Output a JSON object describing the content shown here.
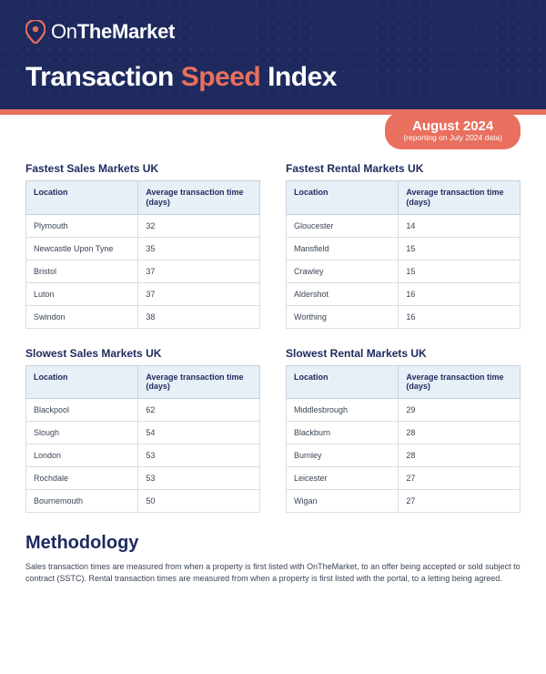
{
  "brand": {
    "name_prefix": "On",
    "name_rest": "TheMarket"
  },
  "title": {
    "part1": "Transaction ",
    "accent": "Speed",
    "part2": " Index"
  },
  "badge": {
    "main": "August 2024",
    "sub": "(reporting on July 2024 data)"
  },
  "colors": {
    "header_bg": "#1e2a5e",
    "accent": "#e96f5e",
    "th_bg": "#e8f0f7",
    "border": "#c5d2de"
  },
  "tables": [
    {
      "title": "Fastest Sales Markets UK",
      "columns": [
        "Location",
        "Average transaction time (days)"
      ],
      "rows": [
        [
          "Plymouth",
          "32"
        ],
        [
          "Newcastle Upon Tyne",
          "35"
        ],
        [
          "Bristol",
          "37"
        ],
        [
          "Luton",
          "37"
        ],
        [
          "Swindon",
          "38"
        ]
      ]
    },
    {
      "title": "Fastest Rental Markets UK",
      "columns": [
        "Location",
        "Average transaction time (days)"
      ],
      "rows": [
        [
          "Gloucester",
          "14"
        ],
        [
          "Mansfield",
          "15"
        ],
        [
          "Crawley",
          "15"
        ],
        [
          "Aldershot",
          "16"
        ],
        [
          "Worthing",
          "16"
        ]
      ]
    },
    {
      "title": "Slowest Sales Markets UK",
      "columns": [
        "Location",
        "Average transaction time (days)"
      ],
      "rows": [
        [
          "Blackpool",
          "62"
        ],
        [
          "Slough",
          "54"
        ],
        [
          "London",
          "53"
        ],
        [
          "Rochdale",
          "53"
        ],
        [
          "Bournemouth",
          "50"
        ]
      ]
    },
    {
      "title": "Slowest Rental Markets UK",
      "columns": [
        "Location",
        "Average transaction time (days)"
      ],
      "rows": [
        [
          "Middlesbrough",
          "29"
        ],
        [
          "Blackburn",
          "28"
        ],
        [
          "Burnley",
          "28"
        ],
        [
          "Leicester",
          "27"
        ],
        [
          "Wigan",
          "27"
        ]
      ]
    }
  ],
  "methodology": {
    "heading": "Methodology",
    "body": "Sales transaction times are measured from when a property is first listed with OnTheMarket, to an offer being accepted or sold subject to contract (SSTC). Rental transaction times are measured from when a property is first listed with the portal, to a letting being agreed."
  }
}
